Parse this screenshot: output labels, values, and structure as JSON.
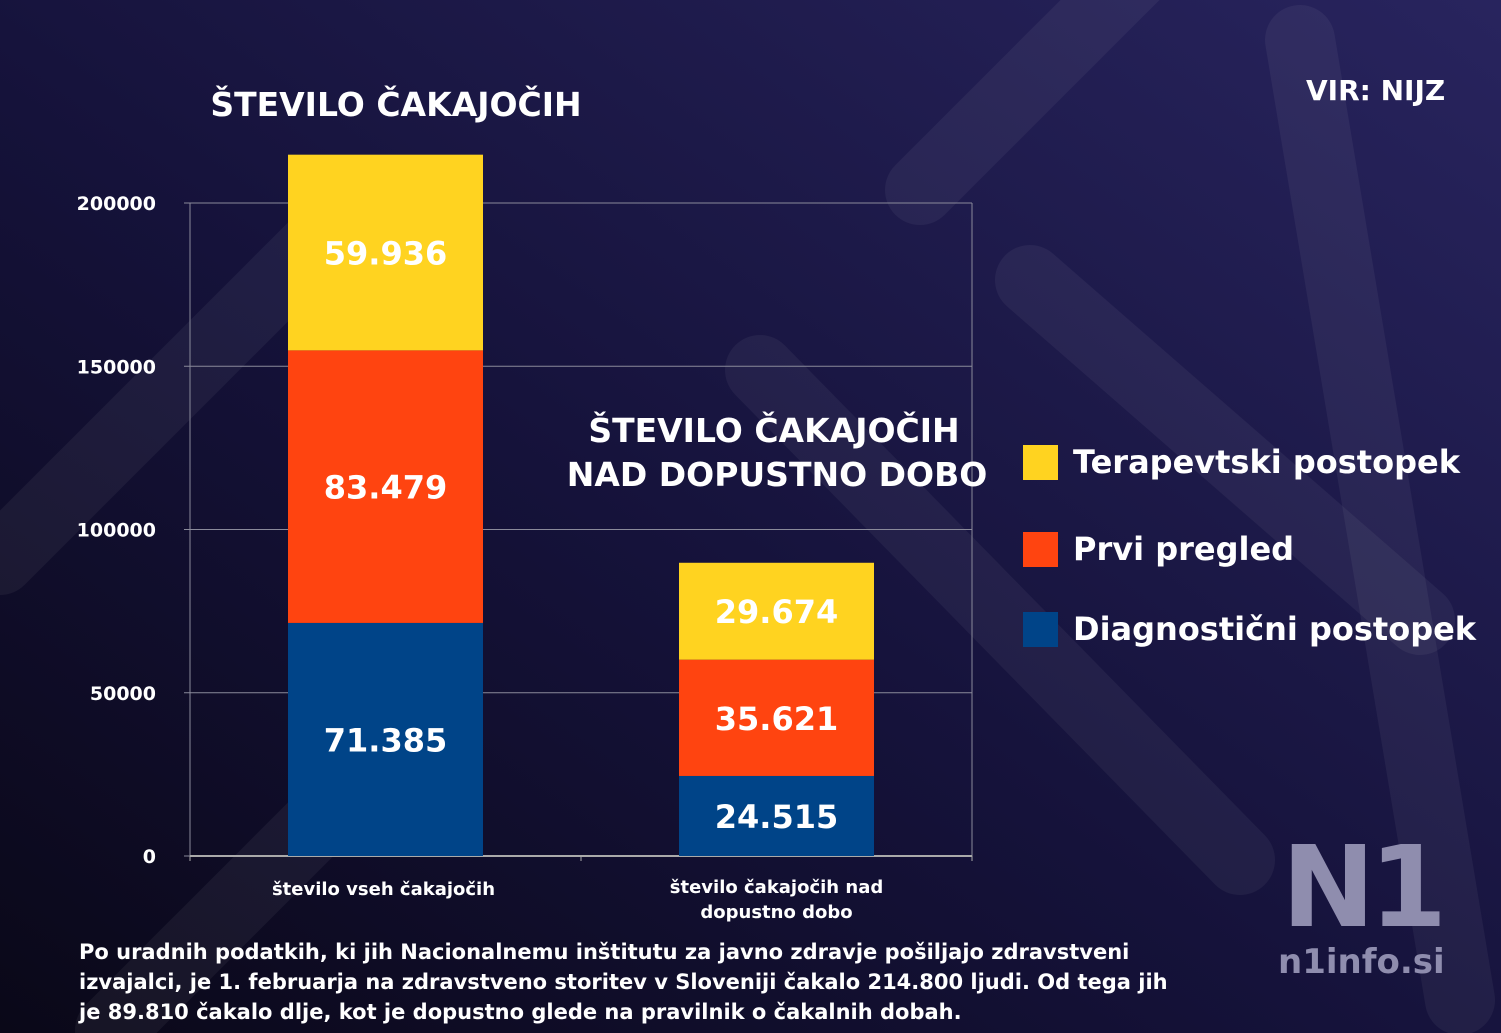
{
  "source": "VIR: NIJZ",
  "footnote": "Po uradnih podatkih, ki jih Nacionalnemu inštitutu za javno zdravje pošiljajo zdravstveni izvajalci, je 1. februarja na zdravstveno storitev v Sloveniji čakalo 214.800 ljudi. Od tega jih je 89.810 čakalo dlje, kot je dopustno glede na pravilnik o čakalnih dobah.",
  "logo": {
    "mark": "N1",
    "url": "n1info.si"
  },
  "chart_data": {
    "type": "bar",
    "stacked": true,
    "titles": [
      "ŠTEVILO ČAKAJOČIH",
      "ŠTEVILO ČAKAJOČIH",
      "NAD DOPUSTNO DOBO"
    ],
    "categories": [
      [
        "število vseh čakajočih"
      ],
      [
        "število čakajočih nad",
        "dopustno dobo"
      ]
    ],
    "series": [
      {
        "name": "Diagnostični postopek",
        "color": "#004488",
        "values": [
          71385,
          24515
        ],
        "labels": [
          "71.385",
          "24.515"
        ]
      },
      {
        "name": "Prvi pregled",
        "color": "#FF4410",
        "values": [
          83479,
          35621
        ],
        "labels": [
          "83.479",
          "35.621"
        ]
      },
      {
        "name": "Terapevtski postopek",
        "color": "#FFD320",
        "values": [
          59936,
          29674
        ],
        "labels": [
          "59.936",
          "29.674"
        ]
      }
    ],
    "yticks": [
      "0",
      "50000",
      "100000",
      "150000",
      "200000"
    ],
    "ylim": [
      0,
      200000
    ],
    "grid": true,
    "legend_position": "right",
    "legend_order": [
      2,
      1,
      0
    ]
  }
}
